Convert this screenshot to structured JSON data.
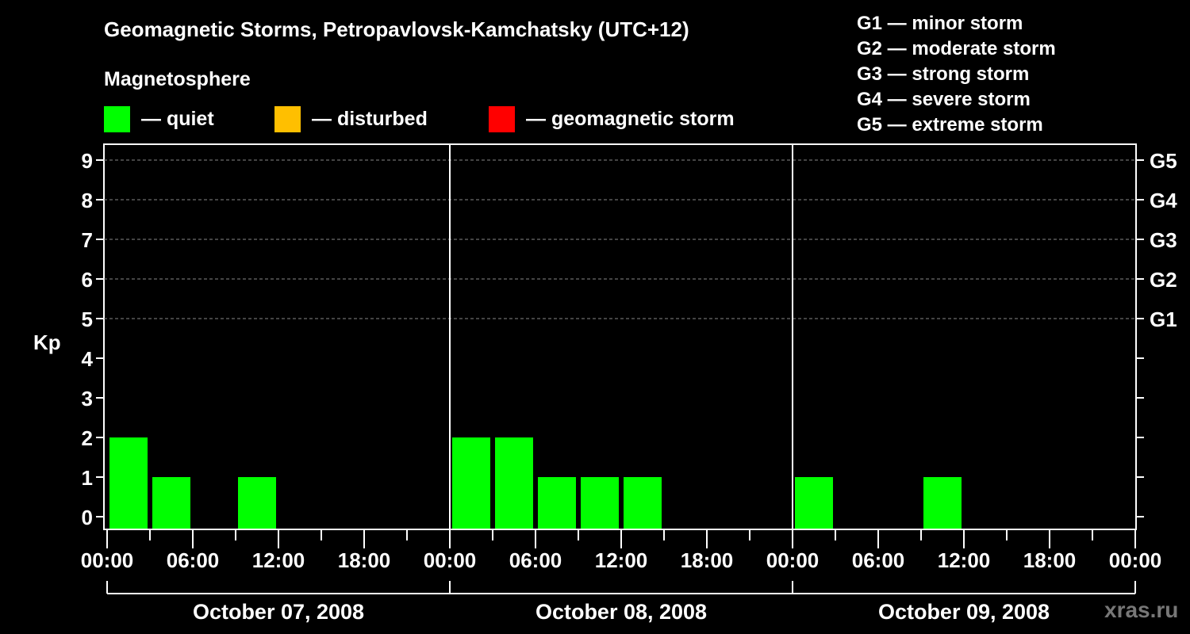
{
  "title": "Geomagnetic Storms, Petropavlovsk-Kamchatsky (UTC+12)",
  "subtitle": "Magnetosphere",
  "legend": [
    {
      "label": "— quiet",
      "color": "#00ff00"
    },
    {
      "label": "— disturbed",
      "color": "#ffbf00"
    },
    {
      "label": "— geomagnetic storm",
      "color": "#ff0000"
    }
  ],
  "g_legend": [
    "G1 — minor storm",
    "G2 — moderate storm",
    "G3 — strong storm",
    "G4 — severe storm",
    "G5 — extreme storm"
  ],
  "watermark": "xras.ru",
  "chart_data": {
    "type": "bar",
    "title": "Geomagnetic Storms, Petropavlovsk-Kamchatsky (UTC+12)",
    "ylabel": "Kp",
    "ylim": [
      0,
      9
    ],
    "yticks": [
      0,
      1,
      2,
      3,
      4,
      5,
      6,
      7,
      8,
      9
    ],
    "right_axis_labels": {
      "5": "G1",
      "6": "G2",
      "7": "G3",
      "8": "G4",
      "9": "G5"
    },
    "grid": "dashed horizontal at Kp 5-9",
    "x_tick_labels": [
      "00:00",
      "06:00",
      "12:00",
      "18:00",
      "00:00",
      "06:00",
      "12:00",
      "18:00",
      "00:00",
      "06:00",
      "12:00",
      "18:00",
      "00:00"
    ],
    "days": [
      "October 07, 2008",
      "October 08, 2008",
      "October 09, 2008"
    ],
    "interval_hours": 3,
    "categories": [
      "00-03",
      "03-06",
      "06-09",
      "09-12",
      "12-15",
      "15-18",
      "18-21",
      "21-24"
    ],
    "series": [
      {
        "name": "October 07, 2008",
        "values": [
          2,
          1,
          0,
          1,
          0,
          0,
          0,
          0
        ],
        "present": [
          true,
          true,
          false,
          true,
          false,
          false,
          false,
          false
        ]
      },
      {
        "name": "October 08, 2008",
        "values": [
          2,
          2,
          1,
          1,
          1,
          0,
          0,
          0
        ],
        "present": [
          true,
          true,
          true,
          true,
          true,
          false,
          false,
          false
        ]
      },
      {
        "name": "October 09, 2008",
        "values": [
          1,
          0,
          0,
          1,
          0,
          0,
          0,
          0
        ],
        "present": [
          true,
          false,
          false,
          true,
          false,
          false,
          false,
          false
        ]
      }
    ],
    "bar_color": "#00ff00"
  }
}
